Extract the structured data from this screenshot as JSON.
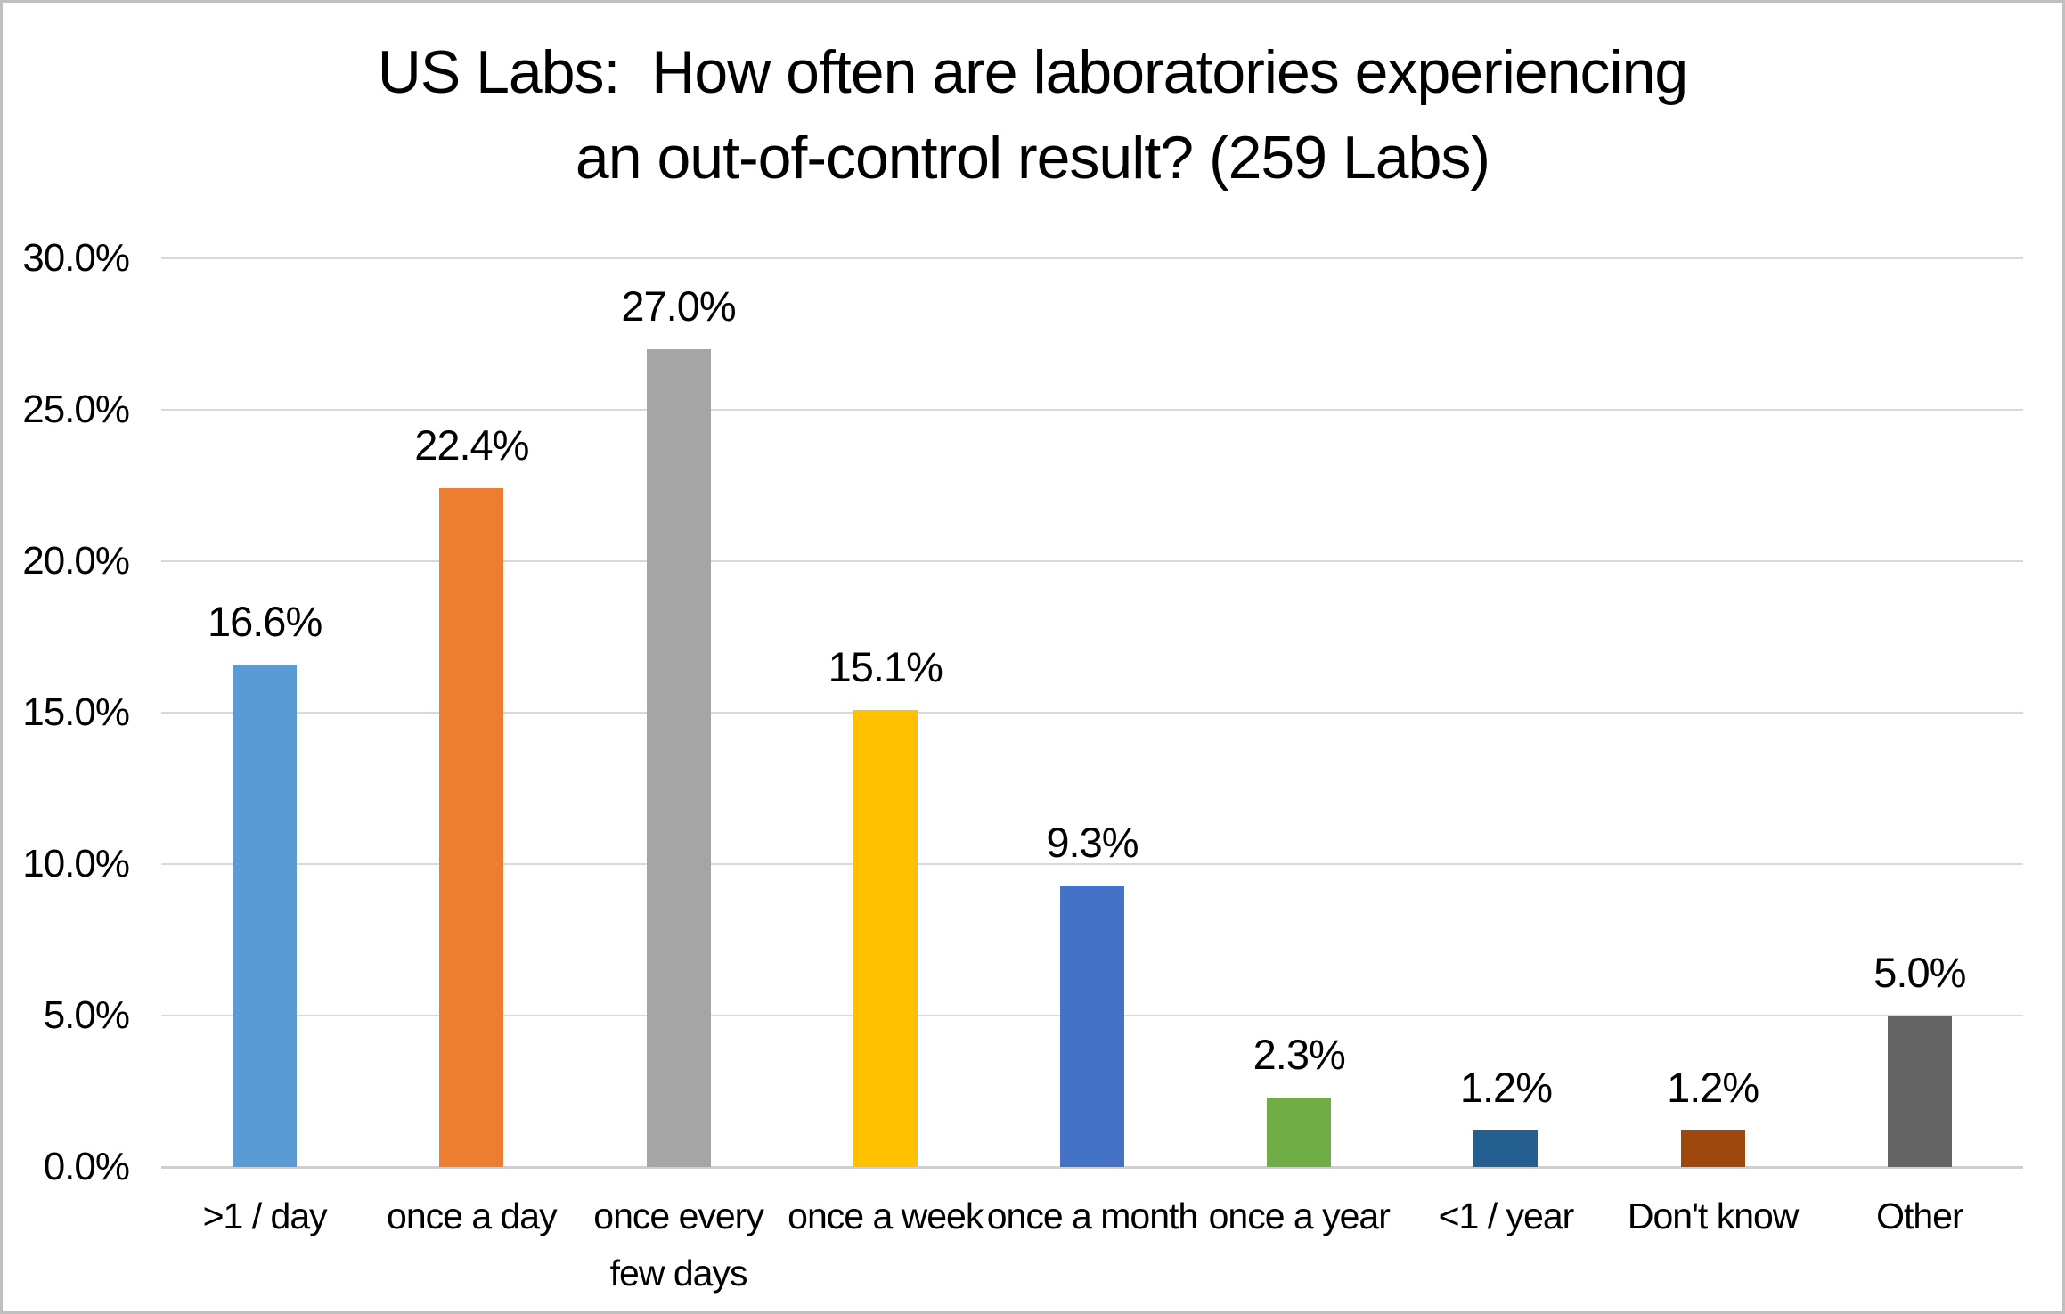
{
  "title": {
    "lines": [
      "US Labs:  How often are laboratories experiencing",
      "an out-of-control result? (259 Labs)"
    ]
  },
  "chart_data": {
    "type": "bar",
    "title": "US Labs:  How often are laboratories experiencing an out-of-control result? (259 Labs)",
    "sample_size_note": "259 Labs",
    "categories": [
      ">1 / day",
      "once a day",
      "once every few days",
      "once a week",
      "once a month",
      "once a year",
      "<1 / year",
      "Don't know",
      "Other"
    ],
    "values": [
      16.6,
      22.4,
      27.0,
      15.1,
      9.3,
      2.3,
      1.2,
      1.2,
      5.0
    ],
    "value_labels": [
      "16.6%",
      "22.4%",
      "27.0%",
      "15.1%",
      "9.3%",
      "2.3%",
      "1.2%",
      "1.2%",
      "5.0%"
    ],
    "bar_colors": [
      "#5B9BD5",
      "#ED7D31",
      "#A5A5A5",
      "#FFC000",
      "#4472C4",
      "#70AD47",
      "#255E91",
      "#9E480E",
      "#636363"
    ],
    "xlabel": "",
    "ylabel": "",
    "ylim": [
      0,
      30
    ],
    "ytick_step": 5,
    "yticks": [
      "30.0%",
      "25.0%",
      "20.0%",
      "15.0%",
      "10.0%",
      "5.0%",
      "0.0%"
    ],
    "grid": "horizontal",
    "legend": "none",
    "gridline_color": "#D9D9D9",
    "axis_line_color": "#D0CECE",
    "text_color": "#000000",
    "background_color": "#FFFFFF",
    "border_color": "#BFBFBF"
  }
}
